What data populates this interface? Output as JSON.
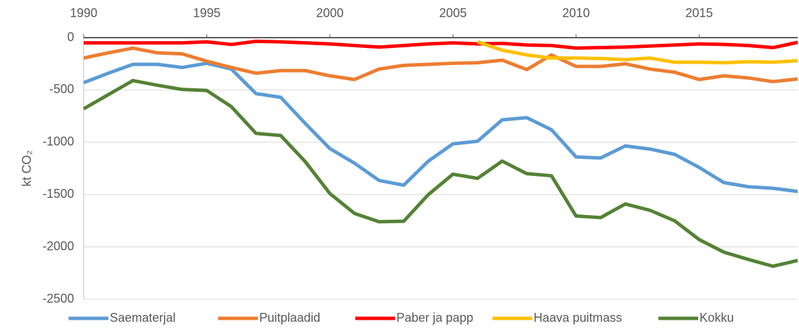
{
  "chart_data": {
    "type": "line",
    "y_label": "kt CO₂",
    "x": [
      1990,
      1991,
      1992,
      1993,
      1994,
      1995,
      1996,
      1997,
      1998,
      1999,
      2000,
      2001,
      2002,
      2003,
      2004,
      2005,
      2006,
      2007,
      2008,
      2009,
      2010,
      2011,
      2012,
      2013,
      2014,
      2015,
      2016,
      2017,
      2018,
      2019
    ],
    "xlim": [
      1990,
      2019
    ],
    "xticks": [
      1990,
      1995,
      2000,
      2005,
      2010,
      2015
    ],
    "ylim": [
      -2500,
      0
    ],
    "yticks": [
      -2500,
      -2000,
      -1500,
      -1000,
      -500,
      0
    ],
    "grid": true,
    "legend": "bottom",
    "series": [
      {
        "name": "Saematerjal",
        "color": "#5b9bd5",
        "values": [
          -430,
          -340,
          -255,
          -255,
          -285,
          -245,
          -300,
          -535,
          -570,
          -820,
          -1060,
          -1200,
          -1365,
          -1410,
          -1180,
          -1015,
          -990,
          -785,
          -765,
          -880,
          -1140,
          -1150,
          -1035,
          -1065,
          -1115,
          -1240,
          -1385,
          -1425,
          -1440,
          -1470
        ]
      },
      {
        "name": "Puitplaadid",
        "color": "#ed7d31",
        "values": [
          -195,
          -145,
          -100,
          -145,
          -155,
          -225,
          -285,
          -340,
          -315,
          -315,
          -365,
          -400,
          -300,
          -265,
          -255,
          -245,
          -240,
          -215,
          -305,
          -165,
          -275,
          -275,
          -250,
          -300,
          -330,
          -400,
          -365,
          -385,
          -420,
          -395
        ]
      },
      {
        "name": "Paber ja papp",
        "color": "#ff0000",
        "values": [
          -50,
          -50,
          -50,
          -50,
          -50,
          -40,
          -65,
          -35,
          -40,
          -50,
          -60,
          -75,
          -90,
          -75,
          -60,
          -50,
          -60,
          -55,
          -70,
          -75,
          -100,
          -95,
          -90,
          -80,
          -70,
          -60,
          -65,
          -75,
          -95,
          -45
        ]
      },
      {
        "name": "Haava puitmass",
        "color": "#ffc000",
        "values": [
          null,
          null,
          null,
          null,
          null,
          null,
          null,
          null,
          null,
          null,
          null,
          null,
          null,
          null,
          null,
          null,
          -40,
          -120,
          -165,
          -195,
          -195,
          -200,
          -210,
          -195,
          -235,
          -235,
          -240,
          -230,
          -235,
          -220
        ]
      },
      {
        "name": "Kokku",
        "color": "#548235",
        "values": [
          -680,
          -545,
          -410,
          -455,
          -495,
          -505,
          -660,
          -915,
          -935,
          -1185,
          -1490,
          -1680,
          -1760,
          -1755,
          -1500,
          -1305,
          -1345,
          -1180,
          -1300,
          -1320,
          -1705,
          -1720,
          -1590,
          -1650,
          -1750,
          -1930,
          -2050,
          -2120,
          -2185,
          -2130
        ]
      }
    ]
  }
}
